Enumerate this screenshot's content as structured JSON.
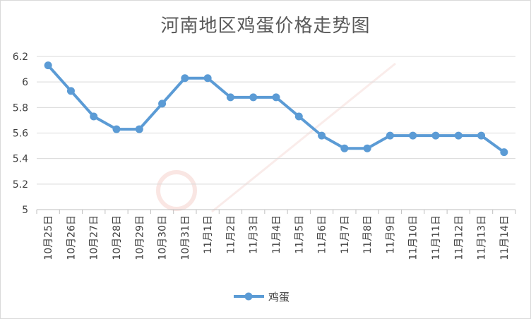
{
  "chart_data": {
    "type": "line",
    "title": "河南地区鸡蛋价格走势图",
    "categories": [
      "10月25日",
      "10月26日",
      "10月27日",
      "10月28日",
      "10月29日",
      "10月30日",
      "10月31日",
      "11月1日",
      "11月2日",
      "11月3日",
      "11月4日",
      "11月5日",
      "11月6日",
      "11月7日",
      "11月8日",
      "11月9日",
      "11月10日",
      "11月11日",
      "11月12日",
      "11月13日",
      "11月14日"
    ],
    "series": [
      {
        "name": "鸡蛋",
        "values": [
          6.13,
          5.93,
          5.73,
          5.63,
          5.63,
          5.83,
          6.03,
          6.03,
          5.88,
          5.88,
          5.88,
          5.73,
          5.58,
          5.48,
          5.48,
          5.58,
          5.58,
          5.58,
          5.58,
          5.58,
          5.45
        ],
        "color": "#5b9bd5"
      }
    ],
    "ylim": [
      5,
      6.2
    ],
    "yticks": [
      "5",
      "5.2",
      "5.4",
      "5.6",
      "5.8",
      "6",
      "6.2"
    ],
    "grid": true,
    "legend": "bottom-center"
  }
}
